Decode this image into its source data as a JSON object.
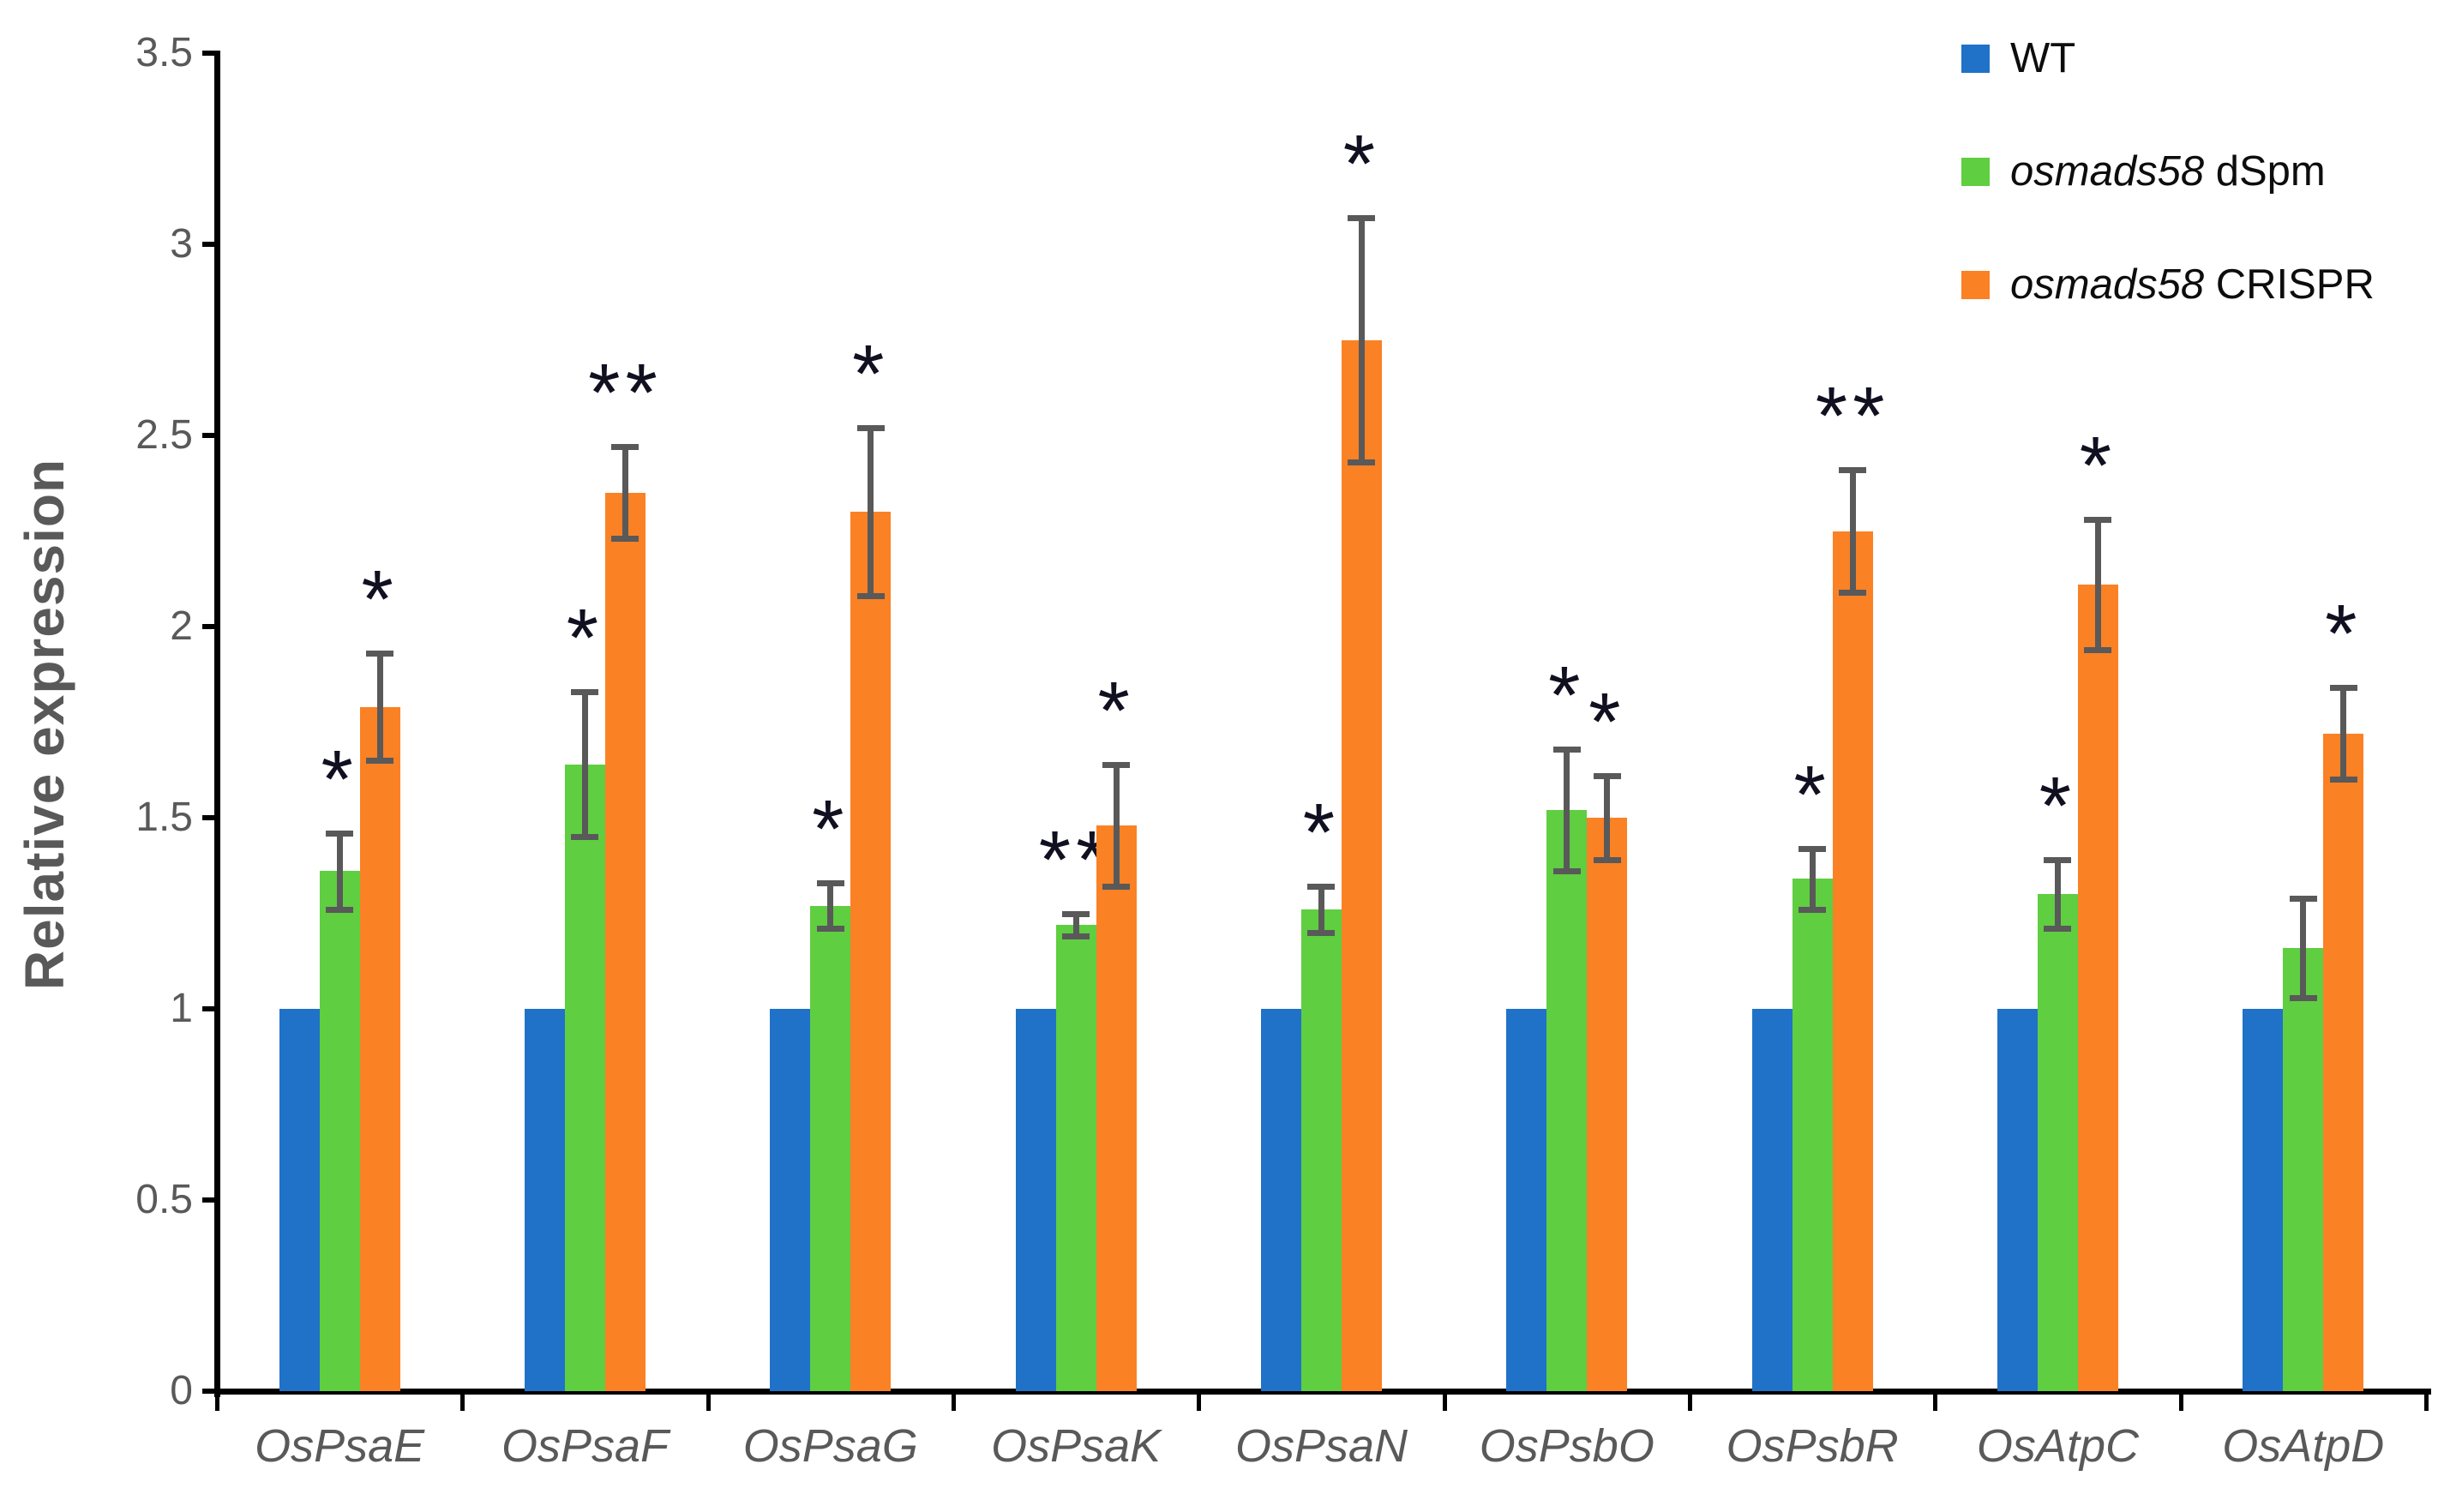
{
  "chart_data": {
    "type": "bar",
    "title": "",
    "ylabel": "Relative expression",
    "xlabel": "",
    "ylim": [
      0,
      3.5
    ],
    "yticks": [
      "0",
      "0.5",
      "1",
      "1.5",
      "2",
      "2.5",
      "3",
      "3.5"
    ],
    "grid": false,
    "legend_position": "top-right",
    "categories": [
      "OsPsaE",
      "OsPsaF",
      "OsPsaG",
      "OsPsaK",
      "OsPsaN",
      "OsPsbO",
      "OsPsbR",
      "OsAtpC",
      "OsAtpD"
    ],
    "series": [
      {
        "name": "WT",
        "color": "#1F72C8",
        "values": [
          1.0,
          1.0,
          1.0,
          1.0,
          1.0,
          1.0,
          1.0,
          1.0,
          1.0
        ],
        "errors": [
          0,
          0,
          0,
          0,
          0,
          0,
          0,
          0,
          0
        ],
        "significance": [
          "",
          "",
          "",
          "",
          "",
          "",
          "",
          "",
          ""
        ]
      },
      {
        "name": "osmads58 dSpm",
        "color": "#5FCE41",
        "values": [
          1.36,
          1.64,
          1.27,
          1.22,
          1.26,
          1.52,
          1.34,
          1.3,
          1.16
        ],
        "errors": [
          0.1,
          0.19,
          0.06,
          0.03,
          0.06,
          0.16,
          0.08,
          0.09,
          0.13
        ],
        "significance": [
          "*",
          "*",
          "*",
          "**",
          "*",
          "*",
          "*",
          "*",
          ""
        ]
      },
      {
        "name": "osmads58 CRISPR",
        "color": "#FB8125",
        "values": [
          1.79,
          2.35,
          2.3,
          1.48,
          2.75,
          1.5,
          2.25,
          2.11,
          1.72
        ],
        "errors": [
          0.14,
          0.12,
          0.22,
          0.16,
          0.32,
          0.11,
          0.16,
          0.17,
          0.12
        ],
        "significance": [
          "*",
          "**",
          "*",
          "*",
          "*",
          "*",
          "**",
          "*",
          "*"
        ]
      }
    ],
    "legend": [
      {
        "italic_part": "",
        "plain_part": "WT",
        "color": "#1F72C8"
      },
      {
        "italic_part": "osmads58",
        "plain_part": " dSpm",
        "color": "#5FCE41"
      },
      {
        "italic_part": "osmads58",
        "plain_part": " CRISPR",
        "color": "#FB8125"
      }
    ]
  }
}
